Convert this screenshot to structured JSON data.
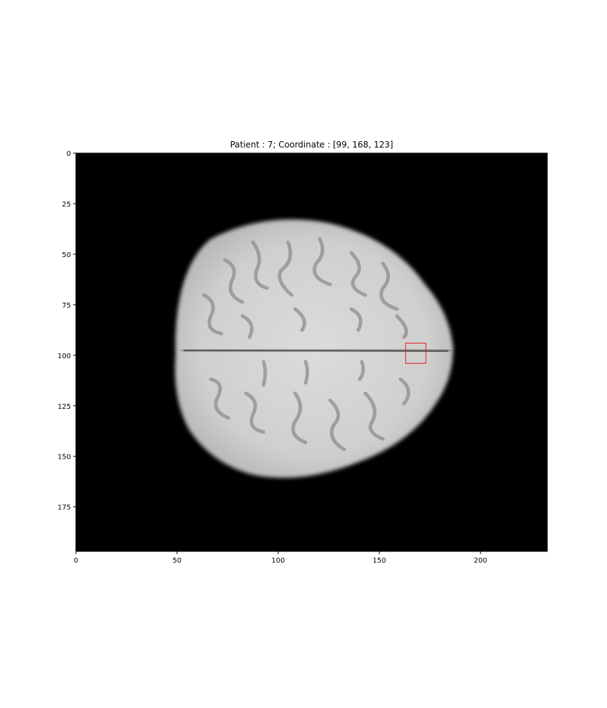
{
  "figure": {
    "title": "Patient : 7; Coordinate : [99, 168, 123]"
  },
  "chart_data": {
    "type": "image",
    "title": "Patient : 7; Coordinate : [99, 168, 123]",
    "xlim": [
      0,
      233
    ],
    "ylim": [
      197,
      0
    ],
    "x_ticks": [
      0,
      50,
      100,
      150,
      200
    ],
    "y_ticks": [
      0,
      25,
      50,
      75,
      100,
      125,
      150,
      175
    ],
    "marker": {
      "type": "rectangle",
      "x": [
        163,
        173
      ],
      "y": [
        94,
        104
      ],
      "color": "#e8141b"
    }
  },
  "colors": {
    "background": "#000000",
    "marker": "#e8141b"
  }
}
